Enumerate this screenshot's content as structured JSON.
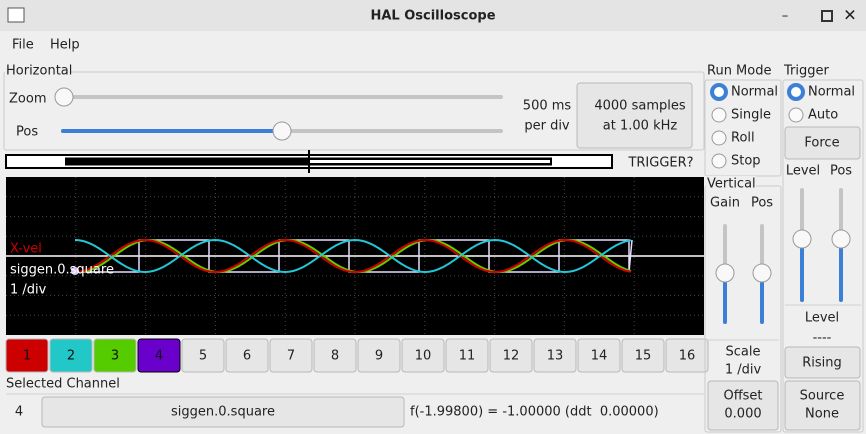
{
  "window": {
    "title": "HAL Oscilloscope"
  },
  "menu": [
    "File",
    "Help"
  ],
  "horizontal": {
    "title": "Horizontal",
    "zoom_label": "Zoom",
    "pos_label": "Pos",
    "rate": [
      "500 ms",
      "per div"
    ],
    "samples_button": [
      "4000 samples",
      "at 1.00 kHz"
    ],
    "trigger_status": "TRIGGER?"
  },
  "scope": {
    "channel_name": "X-vel",
    "signal": "siggen.0.square",
    "scale": "1 /div"
  },
  "channels": [
    "1",
    "2",
    "3",
    "4",
    "5",
    "6",
    "7",
    "8",
    "9",
    "10",
    "11",
    "12",
    "13",
    "14",
    "15",
    "16"
  ],
  "selected_channel": {
    "title": "Selected Channel",
    "number": "4",
    "name": "siggen.0.square",
    "readout": "f(-1.99800) = -1.00000 (ddt  0.00000)"
  },
  "run_mode": {
    "title": "Run Mode",
    "options": [
      "Normal",
      "Single",
      "Roll",
      "Stop"
    ]
  },
  "trigger": {
    "title": "Trigger",
    "options": [
      "Normal",
      "Auto"
    ],
    "force_button": "Force",
    "level_label": "Level",
    "pos_label": "Pos",
    "level_caption": "Level",
    "level_value": "----",
    "edge_button": "Rising",
    "source_button": [
      "Source",
      "None"
    ]
  },
  "vertical": {
    "title": "Vertical",
    "gain_label": "Gain",
    "pos_label": "Pos",
    "scale_label": "Scale",
    "scale_value": "1 /div",
    "offset_button": [
      "Offset",
      "0.000"
    ]
  }
}
